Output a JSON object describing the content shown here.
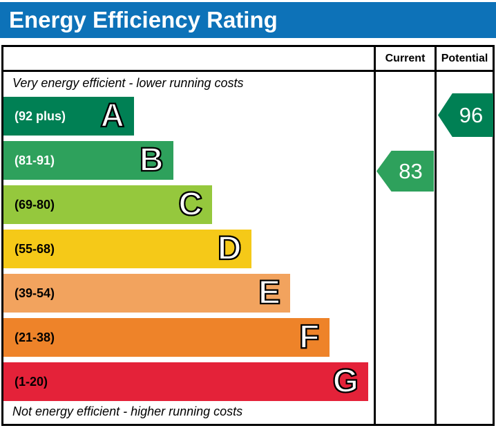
{
  "title": "Energy Efficiency Rating",
  "header": {
    "current_label": "Current",
    "potential_label": "Potential"
  },
  "notes": {
    "top": "Very energy efficient - lower running costs",
    "bottom": "Not energy efficient - higher running costs"
  },
  "colors": {
    "title_bar": "#0d72b8",
    "title_text": "#ffffff",
    "border": "#000000"
  },
  "chart_data": {
    "type": "bar",
    "subtype": "energy-efficiency-rating-epc",
    "title": "Energy Efficiency Rating",
    "columns": [
      "Current",
      "Potential"
    ],
    "bands": [
      {
        "letter": "A",
        "range": "(92 plus)",
        "min": 92,
        "max": 100,
        "color": "#008054",
        "label_color": "#ffffff"
      },
      {
        "letter": "B",
        "range": "(81-91)",
        "min": 81,
        "max": 91,
        "color": "#2ea15c",
        "label_color": "#ffffff"
      },
      {
        "letter": "C",
        "range": "(69-80)",
        "min": 69,
        "max": 80,
        "color": "#95c83d",
        "label_color": "#000000"
      },
      {
        "letter": "D",
        "range": "(55-68)",
        "min": 55,
        "max": 68,
        "color": "#f5c918",
        "label_color": "#000000"
      },
      {
        "letter": "E",
        "range": "(39-54)",
        "min": 39,
        "max": 54,
        "color": "#f2a35e",
        "label_color": "#000000"
      },
      {
        "letter": "F",
        "range": "(21-38)",
        "min": 21,
        "max": 38,
        "color": "#ee8329",
        "label_color": "#000000"
      },
      {
        "letter": "G",
        "range": "(1-20)",
        "min": 1,
        "max": 20,
        "color": "#e42239",
        "label_color": "#000000"
      }
    ],
    "current": {
      "value": 83,
      "band": "B",
      "color": "#2ea15c"
    },
    "potential": {
      "value": 96,
      "band": "A",
      "color": "#008054"
    }
  }
}
